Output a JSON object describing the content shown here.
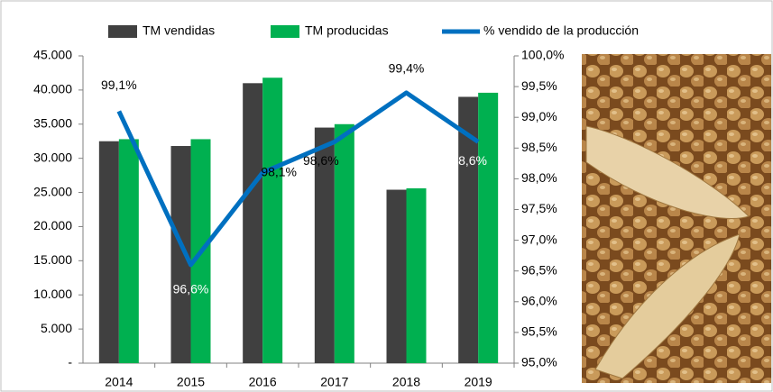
{
  "chart_data": {
    "type": "bar_line",
    "categories": [
      "2014",
      "2015",
      "2016",
      "2017",
      "2018",
      "2019"
    ],
    "series": [
      {
        "name": "TM vendidas",
        "color": "#404040",
        "values": [
          32500,
          31800,
          41000,
          34500,
          25400,
          39000
        ]
      },
      {
        "name": "TM producidas",
        "color": "#00b050",
        "values": [
          32800,
          32800,
          41800,
          35000,
          25600,
          39600
        ]
      },
      {
        "name": "% vendido de la producción",
        "color": "#0070c0",
        "axis": "y2",
        "values": [
          99.1,
          96.6,
          98.1,
          98.6,
          99.4,
          98.6
        ],
        "value_labels": [
          "99,1%",
          "96,6%",
          "98,1%",
          "98,6%",
          "99,4%",
          "98,6%"
        ]
      }
    ],
    "ylim": [
      0,
      45000
    ],
    "yticks": [
      {
        "value": 0,
        "label": "-"
      },
      {
        "value": 5000,
        "label": "5.000"
      },
      {
        "value": 10000,
        "label": "10.000"
      },
      {
        "value": 15000,
        "label": "15.000"
      },
      {
        "value": 20000,
        "label": "20.000"
      },
      {
        "value": 25000,
        "label": "25.000"
      },
      {
        "value": 30000,
        "label": "30.000"
      },
      {
        "value": 35000,
        "label": "35.000"
      },
      {
        "value": 40000,
        "label": "40.000"
      },
      {
        "value": 45000,
        "label": "45.000"
      }
    ],
    "y2lim": [
      95,
      100
    ],
    "y2ticks": [
      {
        "value": 95,
        "label": "95,0%"
      },
      {
        "value": 95.5,
        "label": "95,5%"
      },
      {
        "value": 96,
        "label": "96,0%"
      },
      {
        "value": 96.5,
        "label": "96,5%"
      },
      {
        "value": 97,
        "label": "97,0%"
      },
      {
        "value": 97.5,
        "label": "97,5%"
      },
      {
        "value": 98,
        "label": "98,0%"
      },
      {
        "value": 98.5,
        "label": "98,5%"
      },
      {
        "value": 99,
        "label": "99,0%"
      },
      {
        "value": 99.5,
        "label": "99,5%"
      },
      {
        "value": 100,
        "label": "100,0%"
      }
    ],
    "legend": "top"
  }
}
